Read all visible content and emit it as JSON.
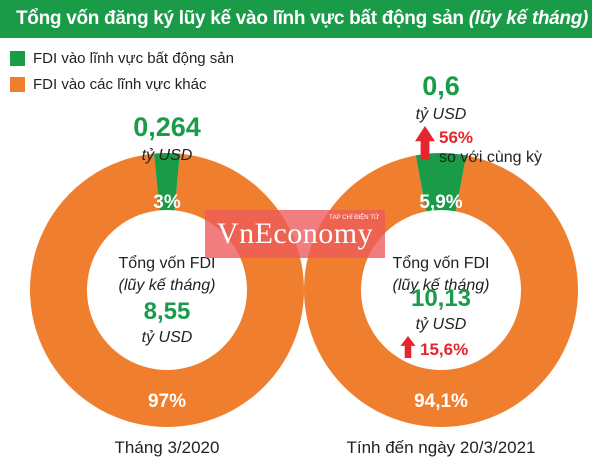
{
  "title": {
    "main": "Tổng vốn đăng ký lũy kế vào lĩnh vực bất động sản",
    "sub": "(lũy kế tháng)"
  },
  "legend": [
    {
      "label": "FDI vào lĩnh vực bất động sản",
      "color": "#1a9b48"
    },
    {
      "label": "FDI vào các lĩnh vực khác",
      "color": "#ef7f2e"
    }
  ],
  "colors": {
    "green": "#1a9b48",
    "orange": "#ef7f2e",
    "up_arrow": "#e5262e"
  },
  "chart_data": [
    {
      "type": "pie",
      "categories": [
        "FDI vào lĩnh vực bất động sản",
        "FDI vào các lĩnh vực khác"
      ],
      "values": [
        3,
        97
      ],
      "slice_labels": [
        "3%",
        "97%"
      ],
      "caption": "Tháng 3/2020",
      "top_value": "0,264",
      "top_unit": "tỷ USD",
      "center_title_1": "Tổng vốn FDI",
      "center_title_2": "(lũy kế tháng)",
      "center_value": "8,55",
      "center_unit": "tỷ USD"
    },
    {
      "type": "pie",
      "categories": [
        "FDI vào lĩnh vực bất động sản",
        "FDI vào các lĩnh vực khác"
      ],
      "values": [
        5.9,
        94.1
      ],
      "slice_labels": [
        "5,9%",
        "94,1%"
      ],
      "caption": "Tính đến ngày 20/3/2021",
      "top_value": "0,6",
      "top_unit": "tỷ USD",
      "growth": "56%",
      "growth_note": "so với cùng kỳ",
      "center_title_1": "Tổng vốn FDI",
      "center_title_2": "(lũy kế tháng)",
      "center_value": "10,13",
      "center_unit": "tỷ USD",
      "center_growth": "15,6%"
    }
  ],
  "watermark": {
    "text": "VnEconomy",
    "small": "TẠP CHÍ ĐIỆN TỬ"
  }
}
